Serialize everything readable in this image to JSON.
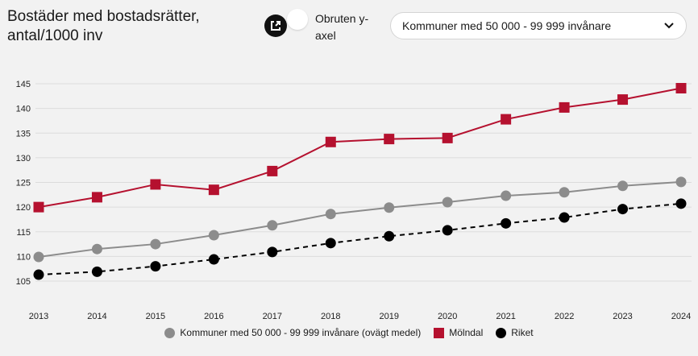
{
  "header": {
    "title": "Bostäder med bostadsrätter, antal/1000 inv",
    "toggle_label": "Obruten y-axel",
    "select_value": "Kommuner med 50 000 - 99 999 invånare"
  },
  "chart_data": {
    "type": "line",
    "title": "Bostäder med bostadsrätter, antal/1000 inv",
    "xlabel": "",
    "ylabel": "",
    "ylim": [
      100,
      145
    ],
    "yticks": [
      105,
      110,
      115,
      120,
      125,
      130,
      135,
      140,
      145
    ],
    "x": [
      2013,
      2014,
      2015,
      2016,
      2017,
      2018,
      2019,
      2020,
      2021,
      2022,
      2023,
      2024
    ],
    "grid": true,
    "legend_position": "bottom",
    "series": [
      {
        "name": "Kommuner med 50 000 - 99 999 invånare (ovägt medel)",
        "color": "#8c8c8c",
        "marker": "circle",
        "dash": false,
        "values": [
          109.9,
          111.5,
          112.5,
          114.3,
          116.3,
          118.6,
          119.9,
          121.0,
          122.3,
          123.0,
          124.3,
          125.1
        ]
      },
      {
        "name": "Mölndal",
        "color": "#b5112f",
        "marker": "square",
        "dash": false,
        "values": [
          120.0,
          122.0,
          124.6,
          123.5,
          127.3,
          133.2,
          133.8,
          134.0,
          137.8,
          140.2,
          141.8,
          144.1
        ]
      },
      {
        "name": "Riket",
        "color": "#000000",
        "marker": "circle",
        "dash": true,
        "values": [
          106.3,
          106.9,
          108.0,
          109.4,
          110.9,
          112.7,
          114.1,
          115.3,
          116.7,
          117.9,
          119.6,
          120.7
        ]
      }
    ]
  }
}
